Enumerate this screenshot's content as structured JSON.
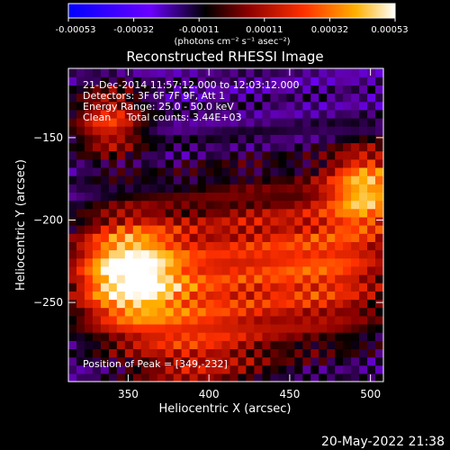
{
  "chart_data": {
    "type": "heatmap",
    "title": "Reconstructed RHESSI Image",
    "xlabel": "Heliocentric X (arcsec)",
    "ylabel": "Heliocentric Y (arcsec)",
    "xlim": [
      313,
      508
    ],
    "ylim": [
      -298,
      -108
    ],
    "x_ticks": [
      350,
      400,
      450,
      500
    ],
    "y_ticks": [
      -150,
      -200,
      -250
    ],
    "colorbar": {
      "ticks": [
        "-0.00053",
        "-0.00032",
        "-0.00011",
        "0.00011",
        "0.00032",
        "0.00053"
      ],
      "unit_label": "(photons cm⁻² s⁻¹ asec⁻²)",
      "range": [
        -0.00053,
        0.00053
      ]
    },
    "annotations": [
      "21-Dec-2014 11:57:12.000 to 12:03:12.000",
      "Detectors: 3F 6F 7F 9F, Att 1",
      "Energy Range: 25.0 - 50.0 keV",
      "Clean     Total counts: 3.44E+03"
    ],
    "peak_label": "Position of Peak = [349,-232]",
    "peak": [
      349,
      -232
    ],
    "sources": [
      {
        "x": 349,
        "y": -232,
        "amp": 1.0,
        "sigma": 24
      },
      {
        "x": 338,
        "y": -140,
        "amp": 0.55,
        "sigma": 16
      },
      {
        "x": 498,
        "y": -180,
        "amp": 0.75,
        "sigma": 18
      },
      {
        "x": 420,
        "y": -225,
        "amp": 0.45,
        "sigma": 40
      },
      {
        "x": 480,
        "y": -230,
        "amp": 0.45,
        "sigma": 30
      },
      {
        "x": 390,
        "y": -280,
        "amp": 0.35,
        "sigma": 30
      }
    ]
  },
  "footer_date": "20-May-2022 21:38"
}
